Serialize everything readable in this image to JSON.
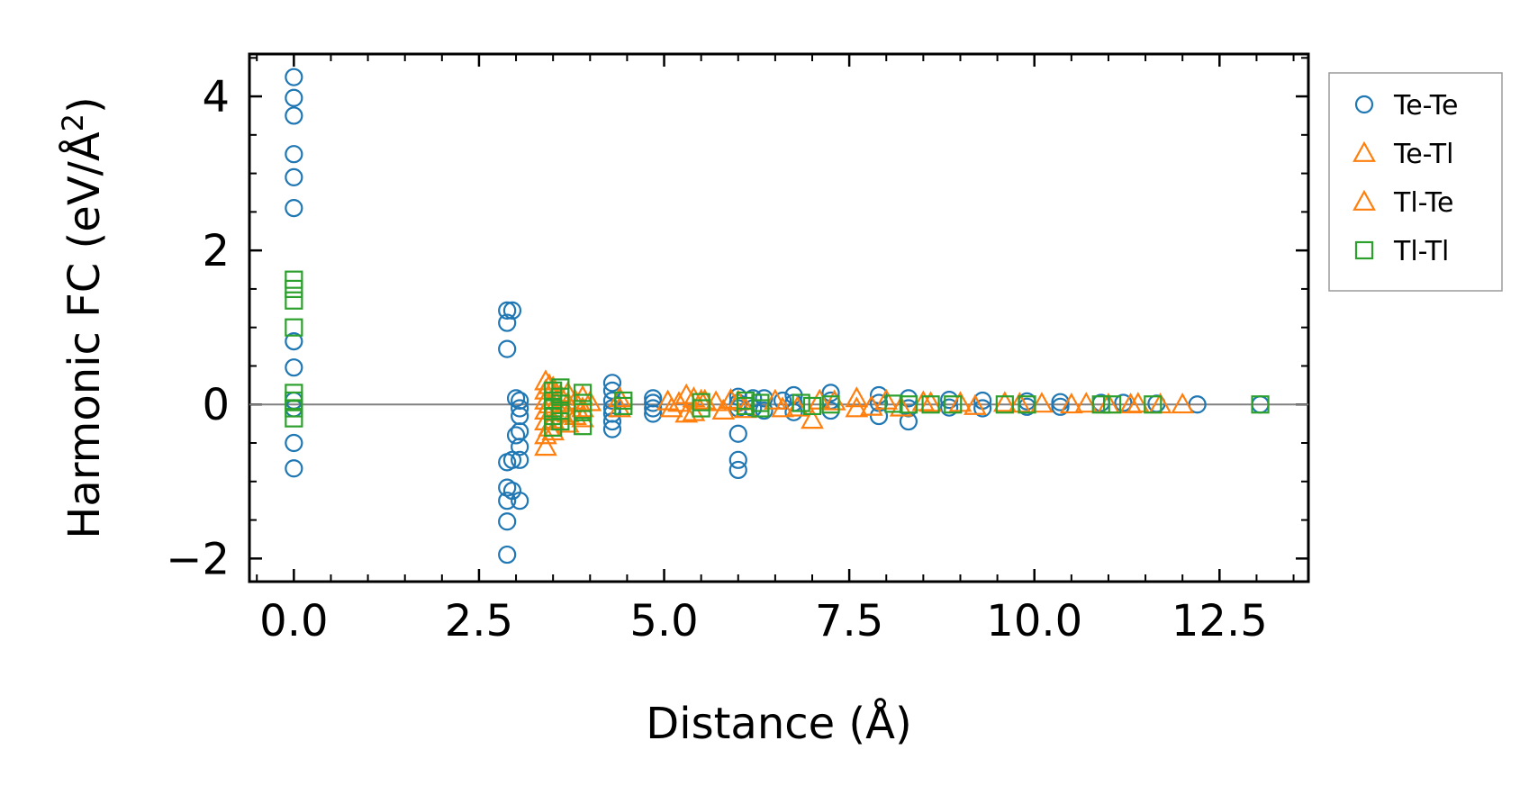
{
  "chart_data": {
    "type": "scatter",
    "title": "",
    "xlabel": "Distance (Å)",
    "ylabel_main": "Harmonic FC (eV/Å",
    "ylabel_sup": "2",
    "ylabel_close": ")",
    "xlim": [
      -0.6,
      13.7
    ],
    "ylim": [
      -2.3,
      4.55
    ],
    "xticks": [
      0.0,
      2.5,
      5.0,
      7.5,
      10.0,
      12.5
    ],
    "xtick_labels": [
      "0.0",
      "2.5",
      "5.0",
      "7.5",
      "10.0",
      "12.5"
    ],
    "yticks": [
      -2,
      0,
      2,
      4
    ],
    "ytick_labels": [
      "−2",
      "0",
      "2",
      "4"
    ],
    "zero_line": 0,
    "legend_position": "outside-right-top",
    "series": [
      {
        "name": "Te-Te",
        "marker": "circle",
        "color": "#1f77b4",
        "points": [
          [
            0,
            4.25
          ],
          [
            0,
            3.98
          ],
          [
            0,
            3.75
          ],
          [
            0,
            3.25
          ],
          [
            0,
            2.95
          ],
          [
            0,
            2.55
          ],
          [
            0,
            0.82
          ],
          [
            0,
            0.48
          ],
          [
            0,
            0.05
          ],
          [
            0,
            -0.05
          ],
          [
            0,
            -0.5
          ],
          [
            0,
            -0.83
          ],
          [
            2.88,
            1.22
          ],
          [
            2.88,
            1.06
          ],
          [
            2.88,
            0.72
          ],
          [
            2.88,
            -0.75
          ],
          [
            2.88,
            -1.08
          ],
          [
            2.88,
            -1.25
          ],
          [
            2.88,
            -1.52
          ],
          [
            2.88,
            -1.95
          ],
          [
            2.95,
            1.22
          ],
          [
            2.95,
            -0.72
          ],
          [
            2.95,
            -1.12
          ],
          [
            3.05,
            0.05
          ],
          [
            3.05,
            -0.05
          ],
          [
            3.05,
            -0.15
          ],
          [
            3.05,
            -0.35
          ],
          [
            3.05,
            -0.55
          ],
          [
            3.05,
            -0.72
          ],
          [
            3.05,
            -1.25
          ],
          [
            3.0,
            0.08
          ],
          [
            3.0,
            -0.4
          ],
          [
            4.3,
            0.28
          ],
          [
            4.3,
            0.18
          ],
          [
            4.3,
            0.05
          ],
          [
            4.3,
            -0.05
          ],
          [
            4.3,
            -0.12
          ],
          [
            4.3,
            -0.22
          ],
          [
            4.3,
            -0.32
          ],
          [
            4.85,
            0.08
          ],
          [
            4.85,
            0.02
          ],
          [
            4.85,
            -0.05
          ],
          [
            4.85,
            -0.12
          ],
          [
            6.0,
            0.1
          ],
          [
            6.0,
            0.02
          ],
          [
            6.0,
            -0.05
          ],
          [
            6.0,
            -0.38
          ],
          [
            6.0,
            -0.72
          ],
          [
            6.0,
            -0.85
          ],
          [
            6.2,
            0.08
          ],
          [
            6.2,
            -0.05
          ],
          [
            6.35,
            0.08
          ],
          [
            6.35,
            -0.08
          ],
          [
            6.75,
            0.12
          ],
          [
            6.75,
            0.02
          ],
          [
            6.75,
            -0.1
          ],
          [
            6.6,
            0.05
          ],
          [
            7.25,
            0.15
          ],
          [
            7.25,
            0.05
          ],
          [
            7.25,
            -0.08
          ],
          [
            7.9,
            0.12
          ],
          [
            7.9,
            0.02
          ],
          [
            7.9,
            -0.15
          ],
          [
            8.3,
            0.08
          ],
          [
            8.3,
            -0.05
          ],
          [
            8.3,
            -0.22
          ],
          [
            8.85,
            0.06
          ],
          [
            8.85,
            -0.04
          ],
          [
            9.3,
            0.05
          ],
          [
            9.3,
            -0.05
          ],
          [
            9.9,
            0.04
          ],
          [
            9.9,
            -0.03
          ],
          [
            10.35,
            0.03
          ],
          [
            10.35,
            -0.03
          ],
          [
            10.9,
            0.02
          ],
          [
            11.2,
            0.02
          ],
          [
            11.65,
            0.01
          ],
          [
            12.2,
            0.0
          ],
          [
            13.05,
            0.0
          ]
        ]
      },
      {
        "name": "Te-Tl",
        "marker": "triangle",
        "color": "#ff7f0e",
        "points": [
          [
            3.4,
            0.3
          ],
          [
            3.4,
            0.18
          ],
          [
            3.4,
            0.05
          ],
          [
            3.4,
            -0.08
          ],
          [
            3.4,
            -0.22
          ],
          [
            3.4,
            -0.4
          ],
          [
            3.4,
            -0.55
          ],
          [
            3.5,
            0.22
          ],
          [
            3.5,
            0.1
          ],
          [
            3.5,
            -0.05
          ],
          [
            3.5,
            -0.2
          ],
          [
            3.5,
            -0.35
          ],
          [
            3.7,
            0.15
          ],
          [
            3.7,
            0.02
          ],
          [
            3.7,
            -0.12
          ],
          [
            3.7,
            -0.25
          ],
          [
            3.9,
            0.1
          ],
          [
            3.9,
            -0.05
          ],
          [
            3.9,
            -0.18
          ],
          [
            4.4,
            0.08
          ],
          [
            4.4,
            -0.05
          ],
          [
            5.05,
            0.04
          ],
          [
            5.2,
            0.02
          ],
          [
            5.3,
            0.12
          ],
          [
            5.3,
            -0.12
          ],
          [
            5.4,
            0.08
          ],
          [
            5.4,
            -0.1
          ],
          [
            5.55,
            0.05
          ],
          [
            5.7,
            0.03
          ],
          [
            5.8,
            -0.08
          ],
          [
            5.9,
            0.06
          ],
          [
            6.1,
            -0.06
          ],
          [
            6.5,
            0.05
          ],
          [
            6.8,
            -0.04
          ],
          [
            7.0,
            -0.2
          ],
          [
            7.1,
            0.05
          ],
          [
            7.6,
            0.08
          ],
          [
            7.6,
            -0.05
          ],
          [
            8.0,
            0.05
          ],
          [
            8.2,
            -0.04
          ],
          [
            8.5,
            0.03
          ],
          [
            9.0,
            0.02
          ],
          [
            9.6,
            0.02
          ],
          [
            10.1,
            0.01
          ],
          [
            10.7,
            0.01
          ],
          [
            11.0,
            0.0
          ],
          [
            11.4,
            0.01
          ],
          [
            11.7,
            0.0
          ]
        ]
      },
      {
        "name": "Tl-Te",
        "marker": "triangle",
        "color": "#ff7f0e",
        "points": [
          [
            3.45,
            0.25
          ],
          [
            3.45,
            0.0
          ],
          [
            3.45,
            -0.3
          ],
          [
            3.6,
            0.12
          ],
          [
            3.6,
            -0.1
          ],
          [
            3.8,
            0.05
          ],
          [
            3.8,
            -0.15
          ],
          [
            4.0,
            0.03
          ],
          [
            5.1,
            -0.05
          ],
          [
            5.5,
            0.05
          ],
          [
            6.0,
            0.04
          ],
          [
            6.6,
            -0.05
          ],
          [
            7.3,
            0.04
          ],
          [
            7.8,
            -0.03
          ],
          [
            8.6,
            0.02
          ],
          [
            9.2,
            -0.02
          ],
          [
            9.8,
            0.01
          ],
          [
            10.5,
            0.0
          ],
          [
            11.3,
            0.0
          ],
          [
            12.0,
            0.0
          ]
        ]
      },
      {
        "name": "Tl-Tl",
        "marker": "square",
        "color": "#2ca02c",
        "points": [
          [
            0,
            1.62
          ],
          [
            0,
            1.5
          ],
          [
            0,
            1.35
          ],
          [
            0,
            1.0
          ],
          [
            0,
            0.15
          ],
          [
            0,
            0.05
          ],
          [
            0,
            -0.05
          ],
          [
            0,
            -0.18
          ],
          [
            3.5,
            0.18
          ],
          [
            3.5,
            0.05
          ],
          [
            3.5,
            -0.05
          ],
          [
            3.5,
            -0.15
          ],
          [
            3.5,
            -0.3
          ],
          [
            3.6,
            0.22
          ],
          [
            3.6,
            0.1
          ],
          [
            3.6,
            -0.08
          ],
          [
            3.6,
            -0.22
          ],
          [
            3.9,
            0.15
          ],
          [
            3.9,
            0.02
          ],
          [
            3.9,
            -0.1
          ],
          [
            3.9,
            -0.28
          ],
          [
            4.45,
            0.05
          ],
          [
            4.45,
            -0.02
          ],
          [
            5.5,
            0.03
          ],
          [
            5.5,
            -0.05
          ],
          [
            6.1,
            0.05
          ],
          [
            6.1,
            -0.02
          ],
          [
            6.3,
            0.02
          ],
          [
            6.3,
            -0.05
          ],
          [
            6.85,
            0.02
          ],
          [
            7.0,
            -0.02
          ],
          [
            7.25,
            0.0
          ],
          [
            8.1,
            0.01
          ],
          [
            8.3,
            0.0
          ],
          [
            8.6,
            0.0
          ],
          [
            8.9,
            0.0
          ],
          [
            9.6,
            0.0
          ],
          [
            9.9,
            0.0
          ],
          [
            10.9,
            0.0
          ],
          [
            11.05,
            0.0
          ],
          [
            11.6,
            0.0
          ],
          [
            13.05,
            0.0
          ]
        ]
      }
    ]
  }
}
